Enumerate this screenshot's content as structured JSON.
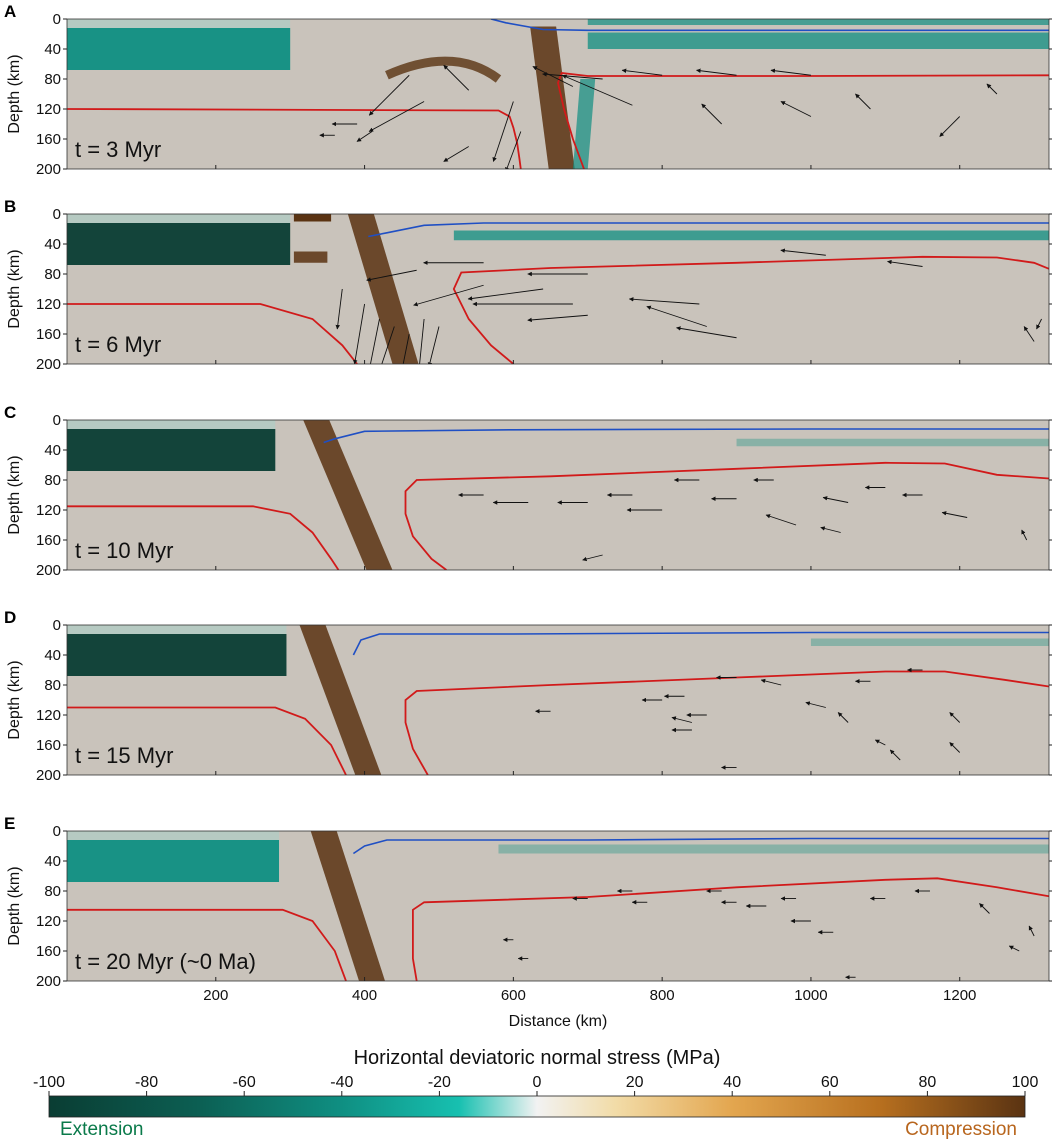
{
  "colors": {
    "background_field": "#c9c3bb",
    "extension_dark": "#0a3d33",
    "extension_mid": "#0f8f82",
    "compression_dark": "#5a3312",
    "compression_mid": "#b8701f",
    "lab_line": "#d11a1a",
    "moho_line": "#1f4fc4",
    "extension_text": "#0a7a4a",
    "compression_text": "#b8661e"
  },
  "chart_data": {
    "type": "heatmap",
    "panels": [
      {
        "letter": "A",
        "time_label": "t = 3 Myr",
        "lab_left": [
          [
            0,
            120
          ],
          [
            580,
            122
          ],
          [
            595,
            130
          ],
          [
            600,
            145
          ],
          [
            605,
            165
          ],
          [
            608,
            185
          ],
          [
            610,
            200
          ]
        ],
        "lab_right": [
          [
            1320,
            75
          ],
          [
            1000,
            76
          ],
          [
            700,
            76
          ],
          [
            665,
            72
          ],
          [
            660,
            85
          ],
          [
            668,
            120
          ],
          [
            680,
            160
          ],
          [
            695,
            200
          ]
        ],
        "moho": [
          [
            570,
            0
          ],
          [
            590,
            5
          ],
          [
            640,
            14
          ],
          [
            700,
            15
          ],
          [
            1320,
            15
          ]
        ],
        "arrows": [
          [
            460,
            75,
            -40,
            40
          ],
          [
            480,
            110,
            -55,
            30
          ],
          [
            540,
            95,
            -25,
            -25
          ],
          [
            600,
            110,
            -20,
            60
          ],
          [
            610,
            150,
            -15,
            40
          ],
          [
            680,
            90,
            -40,
            -20
          ],
          [
            720,
            80,
            -60,
            -5
          ],
          [
            760,
            115,
            -70,
            -30
          ],
          [
            800,
            75,
            -40,
            -5
          ],
          [
            900,
            75,
            -40,
            -5
          ],
          [
            1000,
            75,
            -40,
            -5
          ],
          [
            880,
            140,
            -20,
            -20
          ],
          [
            1000,
            130,
            -30,
            -15
          ],
          [
            1080,
            120,
            -15,
            -15
          ],
          [
            1200,
            130,
            -20,
            20
          ],
          [
            1250,
            100,
            -10,
            -10
          ],
          [
            360,
            155,
            -15,
            0
          ],
          [
            390,
            140,
            -25,
            0
          ],
          [
            410,
            150,
            -15,
            10
          ],
          [
            540,
            170,
            -25,
            15
          ]
        ]
      },
      {
        "letter": "B",
        "time_label": "t = 6 Myr",
        "lab_left": [
          [
            0,
            120
          ],
          [
            260,
            120
          ],
          [
            330,
            140
          ],
          [
            370,
            175
          ],
          [
            390,
            200
          ]
        ],
        "lab_right": [
          [
            1320,
            73
          ],
          [
            1300,
            65
          ],
          [
            1250,
            58
          ],
          [
            1150,
            57
          ],
          [
            900,
            65
          ],
          [
            650,
            72
          ],
          [
            530,
            78
          ],
          [
            520,
            100
          ],
          [
            540,
            140
          ],
          [
            570,
            175
          ],
          [
            600,
            200
          ]
        ],
        "moho": [
          [
            405,
            30
          ],
          [
            430,
            25
          ],
          [
            480,
            15
          ],
          [
            560,
            12
          ],
          [
            1320,
            12
          ]
        ],
        "arrows": [
          [
            470,
            75,
            -50,
            10
          ],
          [
            560,
            65,
            -60,
            0
          ],
          [
            560,
            95,
            -70,
            20
          ],
          [
            640,
            100,
            -75,
            10
          ],
          [
            700,
            80,
            -60,
            0
          ],
          [
            680,
            120,
            -100,
            0
          ],
          [
            700,
            135,
            -60,
            5
          ],
          [
            850,
            120,
            -70,
            -5
          ],
          [
            860,
            150,
            -60,
            -20
          ],
          [
            900,
            165,
            -60,
            -10
          ],
          [
            1150,
            70,
            -35,
            -5
          ],
          [
            1020,
            55,
            -45,
            -5
          ],
          [
            400,
            120,
            -10,
            60
          ],
          [
            420,
            140,
            -10,
            50
          ],
          [
            440,
            150,
            -15,
            45
          ],
          [
            460,
            160,
            -10,
            50
          ],
          [
            480,
            140,
            -5,
            50
          ],
          [
            500,
            150,
            -10,
            40
          ],
          [
            370,
            100,
            -5,
            40
          ],
          [
            1300,
            170,
            -10,
            -15
          ],
          [
            1310,
            140,
            -5,
            10
          ]
        ]
      },
      {
        "letter": "C",
        "time_label": "t = 10 Myr",
        "lab_left": [
          [
            0,
            115
          ],
          [
            250,
            115
          ],
          [
            300,
            125
          ],
          [
            330,
            150
          ],
          [
            355,
            185
          ],
          [
            365,
            200
          ]
        ],
        "lab_right": [
          [
            1320,
            78
          ],
          [
            1250,
            73
          ],
          [
            1180,
            58
          ],
          [
            1100,
            57
          ],
          [
            900,
            65
          ],
          [
            650,
            75
          ],
          [
            470,
            80
          ],
          [
            455,
            95
          ],
          [
            455,
            125
          ],
          [
            465,
            155
          ],
          [
            490,
            185
          ],
          [
            510,
            200
          ]
        ],
        "moho": [
          [
            345,
            30
          ],
          [
            360,
            25
          ],
          [
            400,
            15
          ],
          [
            600,
            13
          ],
          [
            1000,
            12
          ],
          [
            1320,
            12
          ]
        ],
        "arrows": [
          [
            560,
            100,
            -25,
            0
          ],
          [
            620,
            110,
            -35,
            0
          ],
          [
            700,
            110,
            -30,
            0
          ],
          [
            760,
            100,
            -25,
            0
          ],
          [
            800,
            120,
            -35,
            0
          ],
          [
            850,
            80,
            -25,
            0
          ],
          [
            900,
            105,
            -25,
            0
          ],
          [
            950,
            80,
            -20,
            0
          ],
          [
            980,
            140,
            -30,
            -10
          ],
          [
            1050,
            110,
            -25,
            -5
          ],
          [
            1040,
            150,
            -20,
            -5
          ],
          [
            1100,
            90,
            -20,
            0
          ],
          [
            1150,
            100,
            -20,
            0
          ],
          [
            1210,
            130,
            -25,
            -5
          ],
          [
            720,
            180,
            -20,
            5
          ],
          [
            1290,
            160,
            -5,
            -10
          ]
        ]
      },
      {
        "letter": "D",
        "time_label": "t = 15 Myr",
        "lab_left": [
          [
            0,
            110
          ],
          [
            280,
            110
          ],
          [
            320,
            125
          ],
          [
            355,
            160
          ],
          [
            375,
            200
          ]
        ],
        "lab_right": [
          [
            1320,
            82
          ],
          [
            1260,
            73
          ],
          [
            1180,
            62
          ],
          [
            1100,
            62
          ],
          [
            900,
            70
          ],
          [
            650,
            80
          ],
          [
            470,
            88
          ],
          [
            455,
            100
          ],
          [
            455,
            130
          ],
          [
            465,
            165
          ],
          [
            485,
            200
          ]
        ],
        "moho": [
          [
            385,
            40
          ],
          [
            395,
            20
          ],
          [
            420,
            12
          ],
          [
            600,
            12
          ],
          [
            1000,
            10
          ],
          [
            1320,
            10
          ]
        ],
        "arrows": [
          [
            650,
            115,
            -15,
            0
          ],
          [
            800,
            100,
            -20,
            0
          ],
          [
            830,
            95,
            -20,
            0
          ],
          [
            840,
            130,
            -20,
            -5
          ],
          [
            860,
            120,
            -20,
            0
          ],
          [
            840,
            140,
            -20,
            0
          ],
          [
            900,
            70,
            -20,
            0
          ],
          [
            960,
            80,
            -20,
            -5
          ],
          [
            1020,
            110,
            -20,
            -5
          ],
          [
            1080,
            75,
            -15,
            0
          ],
          [
            1150,
            60,
            -15,
            0
          ],
          [
            1050,
            130,
            -10,
            -10
          ],
          [
            1100,
            160,
            -10,
            -5
          ],
          [
            1120,
            180,
            -10,
            -10
          ],
          [
            1200,
            130,
            -10,
            -10
          ],
          [
            1200,
            170,
            -10,
            -10
          ],
          [
            900,
            190,
            -15,
            0
          ]
        ]
      },
      {
        "letter": "E",
        "time_label": "t = 20 Myr (~0 Ma)",
        "lab_left": [
          [
            0,
            105
          ],
          [
            290,
            105
          ],
          [
            330,
            120
          ],
          [
            360,
            160
          ],
          [
            375,
            200
          ]
        ],
        "lab_right": [
          [
            1320,
            87
          ],
          [
            1250,
            75
          ],
          [
            1170,
            63
          ],
          [
            1100,
            65
          ],
          [
            900,
            75
          ],
          [
            700,
            88
          ],
          [
            480,
            95
          ],
          [
            465,
            105
          ],
          [
            465,
            140
          ],
          [
            465,
            170
          ],
          [
            470,
            200
          ]
        ],
        "moho": [
          [
            385,
            30
          ],
          [
            400,
            20
          ],
          [
            430,
            12
          ],
          [
            700,
            12
          ],
          [
            1000,
            10
          ],
          [
            1320,
            10
          ]
        ],
        "arrows": [
          [
            700,
            90,
            -15,
            0
          ],
          [
            760,
            80,
            -15,
            0
          ],
          [
            780,
            95,
            -15,
            0
          ],
          [
            880,
            80,
            -15,
            0
          ],
          [
            900,
            95,
            -15,
            0
          ],
          [
            940,
            100,
            -20,
            0
          ],
          [
            980,
            90,
            -15,
            0
          ],
          [
            1000,
            120,
            -20,
            0
          ],
          [
            1030,
            135,
            -15,
            0
          ],
          [
            1100,
            90,
            -15,
            0
          ],
          [
            1160,
            80,
            -15,
            0
          ],
          [
            1240,
            110,
            -10,
            -10
          ],
          [
            1280,
            160,
            -10,
            -5
          ],
          [
            1060,
            195,
            -10,
            0
          ],
          [
            620,
            170,
            -10,
            0
          ],
          [
            600,
            145,
            -10,
            0
          ],
          [
            1300,
            140,
            -5,
            -10
          ]
        ]
      }
    ],
    "x_axis": {
      "label": "Distance (km)",
      "range": [
        0,
        1320
      ],
      "ticks": [
        200,
        400,
        600,
        800,
        1000,
        1200
      ]
    },
    "y_axis": {
      "label": "Depth (km)",
      "range": [
        0,
        200
      ],
      "ticks": [
        0,
        40,
        80,
        120,
        160,
        200
      ]
    },
    "colorbar": {
      "title": "Horizontal deviatoric normal stress (MPa)",
      "range": [
        -100,
        100
      ],
      "ticks": [
        -100,
        -80,
        -60,
        -40,
        -20,
        0,
        20,
        40,
        60,
        80,
        100
      ],
      "low_label": "Extension",
      "high_label": "Compression"
    }
  }
}
